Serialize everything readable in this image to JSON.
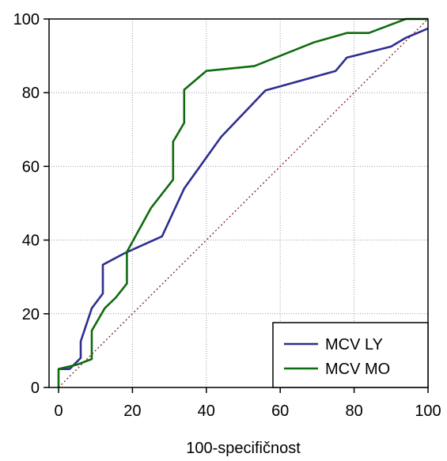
{
  "chart_data": {
    "type": "line",
    "xlabel": "100-specifičnost",
    "ylabel": "",
    "xlim": [
      0,
      100
    ],
    "ylim": [
      0,
      100
    ],
    "x_ticks": [
      "0",
      "20",
      "40",
      "60",
      "80",
      "100"
    ],
    "y_ticks": [
      "0",
      "20",
      "40",
      "60",
      "80",
      "100"
    ],
    "grid": true,
    "legend_position": "bottom-right",
    "reference_line": {
      "from": [
        0,
        0
      ],
      "to": [
        100,
        100
      ],
      "color": "#7a1f2b"
    },
    "series": [
      {
        "name": "MCV LY",
        "color": "#2e2e8f",
        "points": [
          [
            0,
            5
          ],
          [
            3,
            5
          ],
          [
            6,
            8
          ],
          [
            6,
            12.5
          ],
          [
            9,
            21.5
          ],
          [
            12,
            25.5
          ],
          [
            12,
            33.3
          ],
          [
            18,
            36.5
          ],
          [
            28,
            41
          ],
          [
            34,
            54
          ],
          [
            44,
            68
          ],
          [
            56,
            80.6
          ],
          [
            75,
            85.9
          ],
          [
            78,
            89.5
          ],
          [
            90,
            92.5
          ],
          [
            94,
            94.9
          ],
          [
            100,
            97.4
          ]
        ]
      },
      {
        "name": "MCV MO",
        "color": "#0f6b0f",
        "points": [
          [
            0,
            0
          ],
          [
            0,
            5
          ],
          [
            5,
            6.2
          ],
          [
            9,
            7.7
          ],
          [
            9,
            15.4
          ],
          [
            12.5,
            21.5
          ],
          [
            15.5,
            24.4
          ],
          [
            18.5,
            28.2
          ],
          [
            18.5,
            36.8
          ],
          [
            25,
            48.7
          ],
          [
            31,
            56.4
          ],
          [
            31,
            66.7
          ],
          [
            34,
            71.8
          ],
          [
            34,
            80.8
          ],
          [
            40,
            85.9
          ],
          [
            53,
            87.2
          ],
          [
            69,
            93.6
          ],
          [
            78,
            96.2
          ],
          [
            84,
            96.2
          ],
          [
            94,
            100
          ],
          [
            100,
            100
          ]
        ]
      }
    ]
  }
}
